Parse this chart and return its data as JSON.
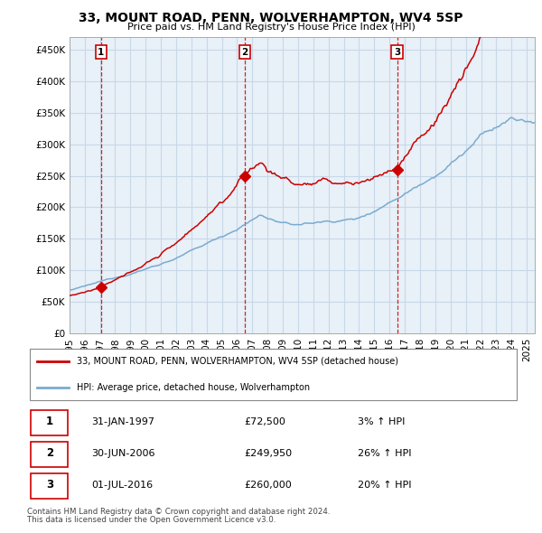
{
  "title": "33, MOUNT ROAD, PENN, WOLVERHAMPTON, WV4 5SP",
  "subtitle": "Price paid vs. HM Land Registry's House Price Index (HPI)",
  "legend_label_red": "33, MOUNT ROAD, PENN, WOLVERHAMPTON, WV4 5SP (detached house)",
  "legend_label_blue": "HPI: Average price, detached house, Wolverhampton",
  "sale_points": [
    {
      "date_num": 1997.08,
      "price": 72500,
      "label": "1"
    },
    {
      "date_num": 2006.5,
      "price": 249950,
      "label": "2"
    },
    {
      "date_num": 2016.5,
      "price": 260000,
      "label": "3"
    }
  ],
  "table_rows": [
    {
      "num": "1",
      "date": "31-JAN-1997",
      "price": "£72,500",
      "hpi": "3% ↑ HPI"
    },
    {
      "num": "2",
      "date": "30-JUN-2006",
      "price": "£249,950",
      "hpi": "26% ↑ HPI"
    },
    {
      "num": "3",
      "date": "01-JUL-2016",
      "price": "£260,000",
      "hpi": "20% ↑ HPI"
    }
  ],
  "footnote1": "Contains HM Land Registry data © Crown copyright and database right 2024.",
  "footnote2": "This data is licensed under the Open Government Licence v3.0.",
  "color_red": "#cc0000",
  "color_blue": "#7aabcf",
  "color_grid": "#c8d8e8",
  "color_bg": "#e8f0f8",
  "ylim": [
    0,
    470000
  ],
  "yticks": [
    0,
    50000,
    100000,
    150000,
    200000,
    250000,
    300000,
    350000,
    400000,
    450000
  ],
  "xlim_start": 1995.0,
  "xlim_end": 2025.5,
  "xtick_years": [
    1995,
    1996,
    1997,
    1998,
    1999,
    2000,
    2001,
    2002,
    2003,
    2004,
    2005,
    2006,
    2007,
    2008,
    2009,
    2010,
    2011,
    2012,
    2013,
    2014,
    2015,
    2016,
    2017,
    2018,
    2019,
    2020,
    2021,
    2022,
    2023,
    2024,
    2025
  ],
  "sale_label_dline_color": "#cc0000",
  "marker_box_color": "#cc0000"
}
